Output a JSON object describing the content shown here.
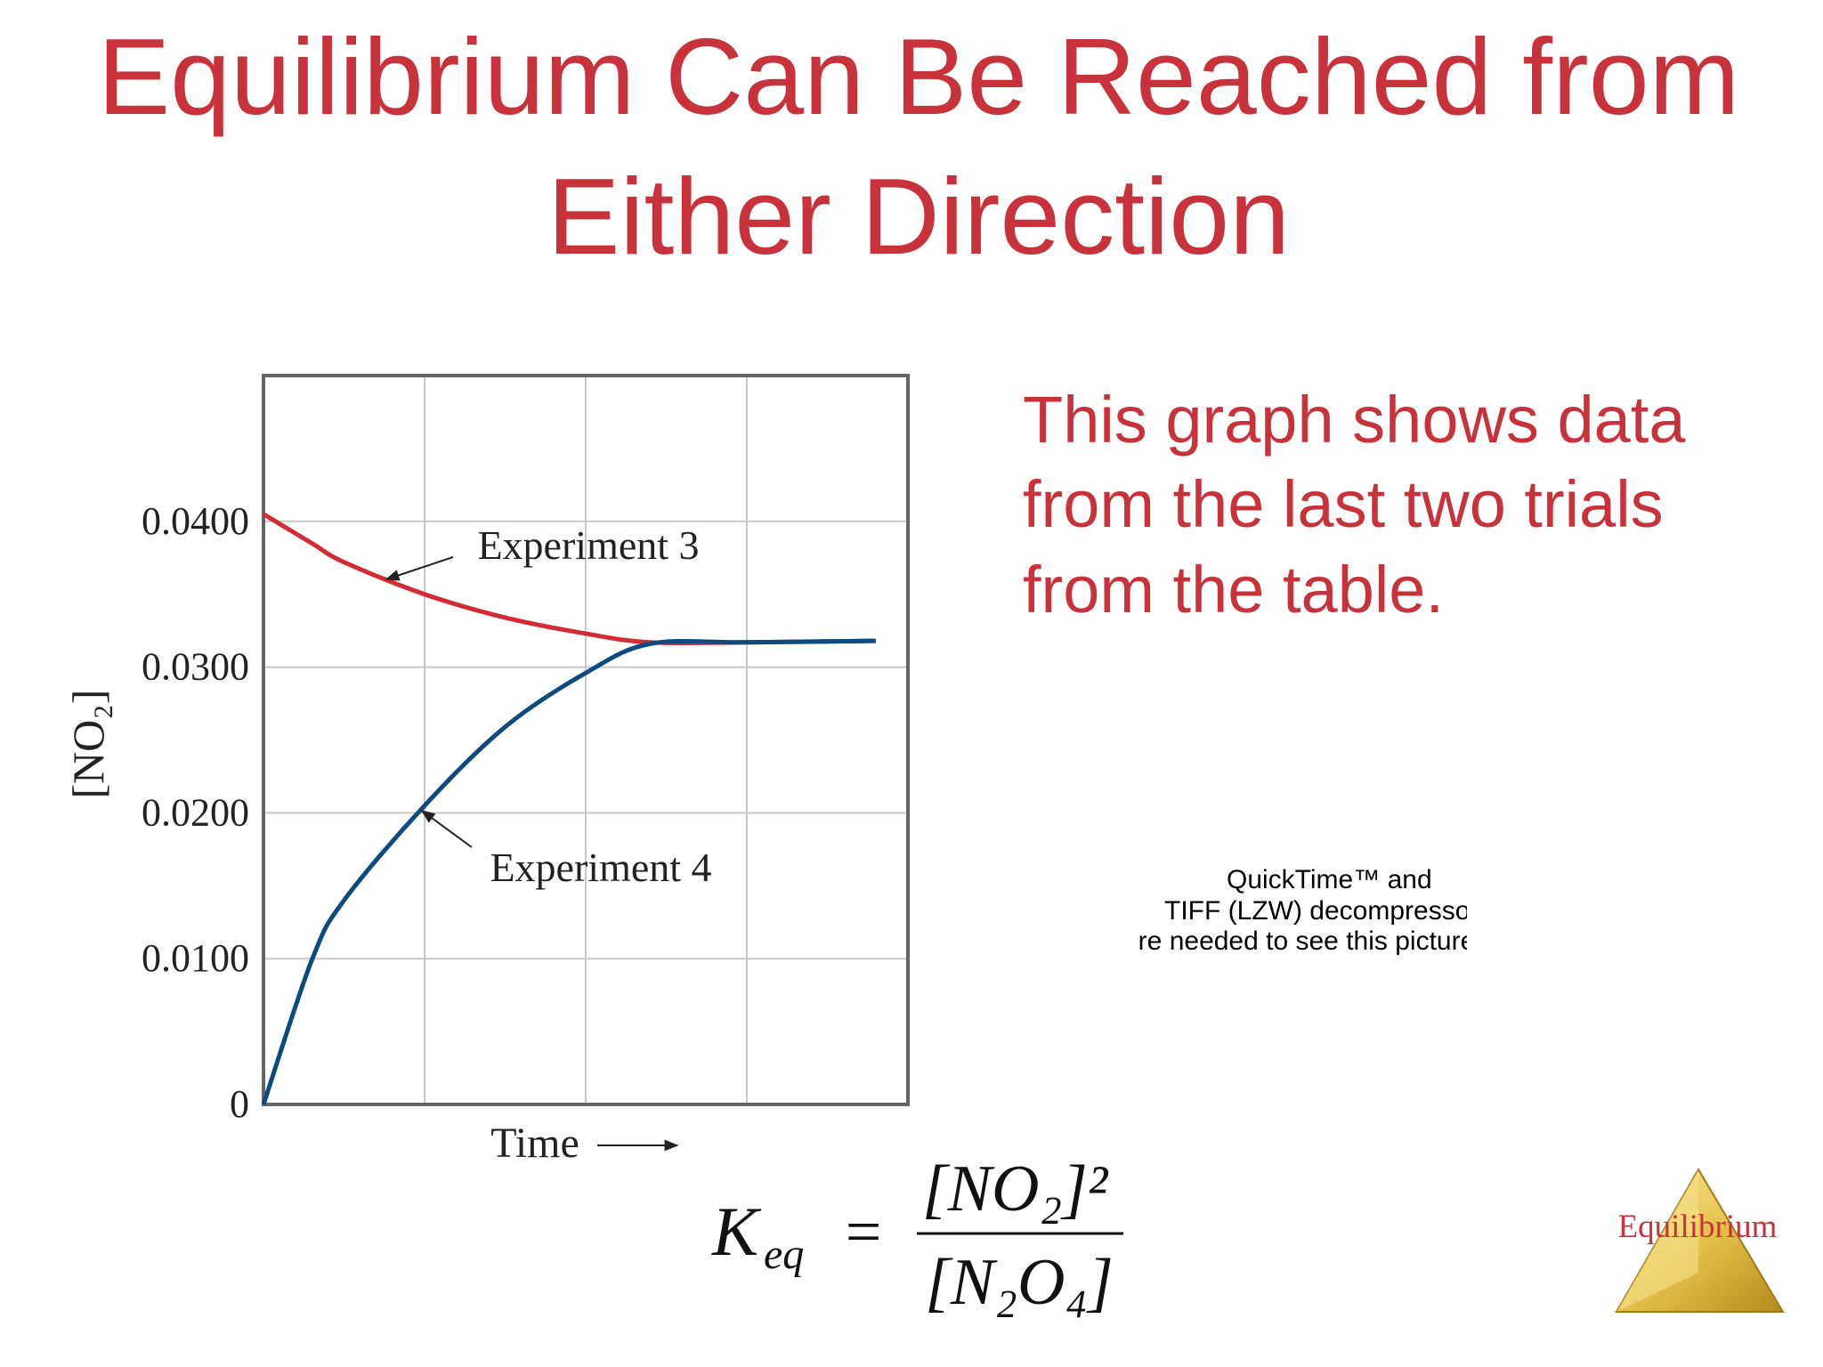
{
  "slide": {
    "title_lines": [
      "Equilibrium Can Be Reached from",
      "Either Direction"
    ],
    "body_lines": [
      "This graph shows data",
      "from the last two trials",
      "from the table."
    ],
    "placeholder_lines": [
      "QuickTime™ and",
      "TIFF (LZW) decompressor",
      "are needed to see this picture."
    ],
    "formula": {
      "lhs": "K",
      "lhs_sub": "eq",
      "equals": "=",
      "numerator": "[NO₂]²",
      "denominator": "[N₂O₄]"
    },
    "logo": "Equilibrium"
  },
  "chart_data": {
    "type": "line",
    "y_label": "[NO₂]",
    "x_label": "Time",
    "x": [
      0,
      0.3,
      0.5,
      1,
      1.5,
      2,
      2.4,
      3,
      3.8
    ],
    "xlim": [
      0,
      4
    ],
    "ylim": [
      0,
      0.05
    ],
    "yticks": [
      0,
      {
        "value": 0.01,
        "label": "0.0100"
      },
      {
        "value": 0.02,
        "label": "0.0200"
      },
      {
        "value": 0.03,
        "label": "0.0300"
      },
      {
        "value": 0.04,
        "label": "0.0400"
      }
    ],
    "grid": true,
    "series": [
      {
        "name": "Experiment 3",
        "color": "#d42a35",
        "values": [
          0.0405,
          0.0385,
          0.0372,
          0.035,
          0.0334,
          0.0323,
          0.0317,
          0.0317,
          0.0318
        ]
      },
      {
        "name": "Experiment 4",
        "color": "#0d4a7e",
        "values": [
          0,
          0.0099,
          0.014,
          0.0205,
          0.0259,
          0.0296,
          0.0316,
          0.0317,
          0.0318
        ]
      }
    ]
  }
}
